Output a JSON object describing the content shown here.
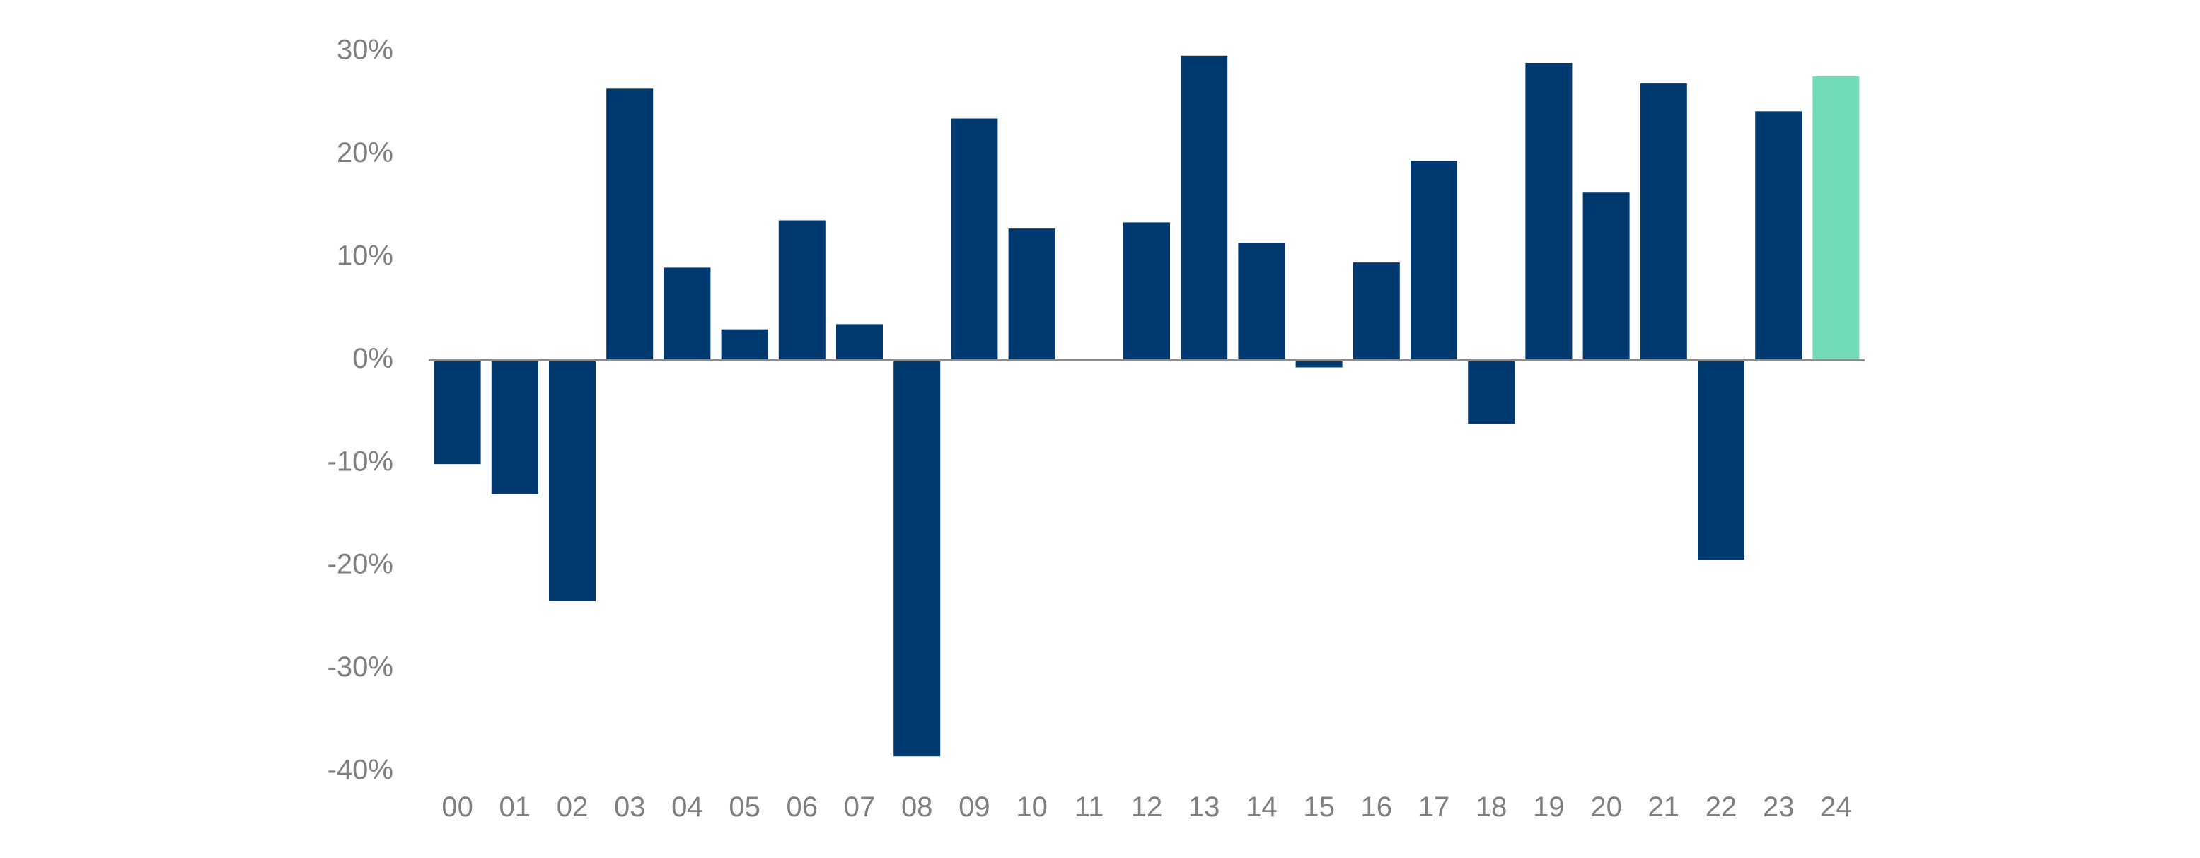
{
  "chart_data": {
    "type": "bar",
    "categories": [
      "00",
      "01",
      "02",
      "03",
      "04",
      "05",
      "06",
      "07",
      "08",
      "09",
      "10",
      "11",
      "12",
      "13",
      "14",
      "15",
      "16",
      "17",
      "18",
      "19",
      "20",
      "21",
      "22",
      "23",
      "24"
    ],
    "values": [
      -10.1,
      -13.0,
      -23.4,
      26.4,
      9.0,
      3.0,
      13.6,
      3.5,
      -38.5,
      23.5,
      12.8,
      0.0,
      13.4,
      29.6,
      11.4,
      -0.7,
      9.5,
      19.4,
      -6.2,
      28.9,
      16.3,
      26.9,
      -19.4,
      24.2,
      27.6
    ],
    "highlight_index": 24,
    "ylim": [
      -40,
      30
    ],
    "yticks": [
      30,
      20,
      10,
      0,
      -10,
      -20,
      -30,
      -40
    ],
    "ytick_labels": [
      "30%",
      "20%",
      "10%",
      "0%",
      "-10%",
      "-20%",
      "-30%",
      "-40%"
    ],
    "title": "",
    "xlabel": "",
    "ylabel": "",
    "grid": false,
    "colors": {
      "bar": "#003870",
      "highlight": "#72dcba",
      "axis": "#8c8c8c",
      "tick_text": "#7f7f7f"
    }
  }
}
